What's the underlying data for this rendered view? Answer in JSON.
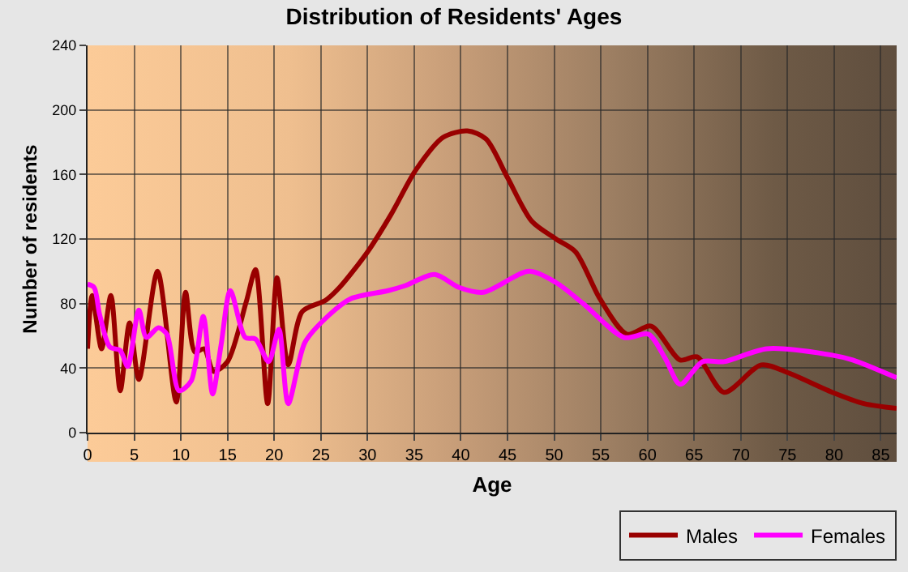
{
  "chart_data": {
    "type": "line",
    "title": "Distribution of Residents' Ages",
    "xlabel": "Age",
    "ylabel": "Number of residents",
    "xlim": [
      0,
      86.7
    ],
    "xticks": [
      0,
      5,
      10,
      15,
      20,
      25,
      30,
      35,
      40,
      45,
      50,
      55,
      60,
      65,
      70,
      75,
      80,
      85
    ],
    "ylim": [
      0,
      240
    ],
    "yticks": [
      0,
      40,
      80,
      120,
      160,
      200,
      240
    ],
    "grid": true,
    "legend": "bottom right",
    "marker": "none",
    "line_style": "solid",
    "series": [
      {
        "name": "Males",
        "color": "#990000",
        "x": [
          0,
          0.5,
          1.5,
          2.5,
          3.5,
          4.5,
          5.5,
          7.5,
          9.5,
          10.5,
          11.5,
          12.5,
          13.5,
          15,
          17,
          18,
          19.3,
          20.3,
          21.5,
          23,
          25.5,
          27,
          30,
          32.5,
          35.2,
          38.1,
          40.7,
          42.7,
          45,
          47.6,
          50.2,
          52.3,
          54.9,
          57.8,
          60.4,
          63.5,
          65.3,
          68.2,
          72.2,
          75.1,
          79.8,
          83.2,
          86.7
        ],
        "values": [
          52,
          85,
          52,
          85,
          26,
          68,
          33,
          100,
          19,
          87,
          50,
          52,
          38,
          44,
          81,
          101,
          18,
          96,
          42,
          75,
          82,
          90,
          112,
          135,
          163,
          183,
          187,
          182,
          158,
          131,
          120,
          112,
          83,
          61,
          66,
          45,
          47,
          25,
          42,
          37,
          25,
          18,
          15
        ]
      },
      {
        "name": "Females",
        "color": "#ff00ff",
        "x": [
          0,
          0.7,
          1.3,
          2.4,
          3.5,
          4.3,
          5.5,
          6.3,
          7.6,
          8.5,
          9.8,
          11.1,
          12.4,
          13.4,
          14.3,
          15.3,
          16.9,
          18,
          19.4,
          20.5,
          21.5,
          23.3,
          25.9,
          28.2,
          32.2,
          34,
          37.2,
          39.8,
          42.4,
          47.3,
          50.2,
          53.1,
          57.5,
          60.1,
          61.9,
          63.5,
          65.9,
          68.2,
          72.8,
          79.8,
          82,
          86.7
        ],
        "values": [
          92,
          90,
          73,
          53,
          51,
          41,
          76,
          59,
          65,
          61,
          26,
          32,
          72,
          24,
          54,
          88,
          59,
          58,
          44,
          64,
          18,
          56,
          73,
          83,
          88,
          91,
          98,
          90,
          87,
          100,
          93,
          80,
          59,
          61,
          46,
          30,
          44,
          44,
          52,
          48,
          45,
          34
        ]
      }
    ]
  }
}
